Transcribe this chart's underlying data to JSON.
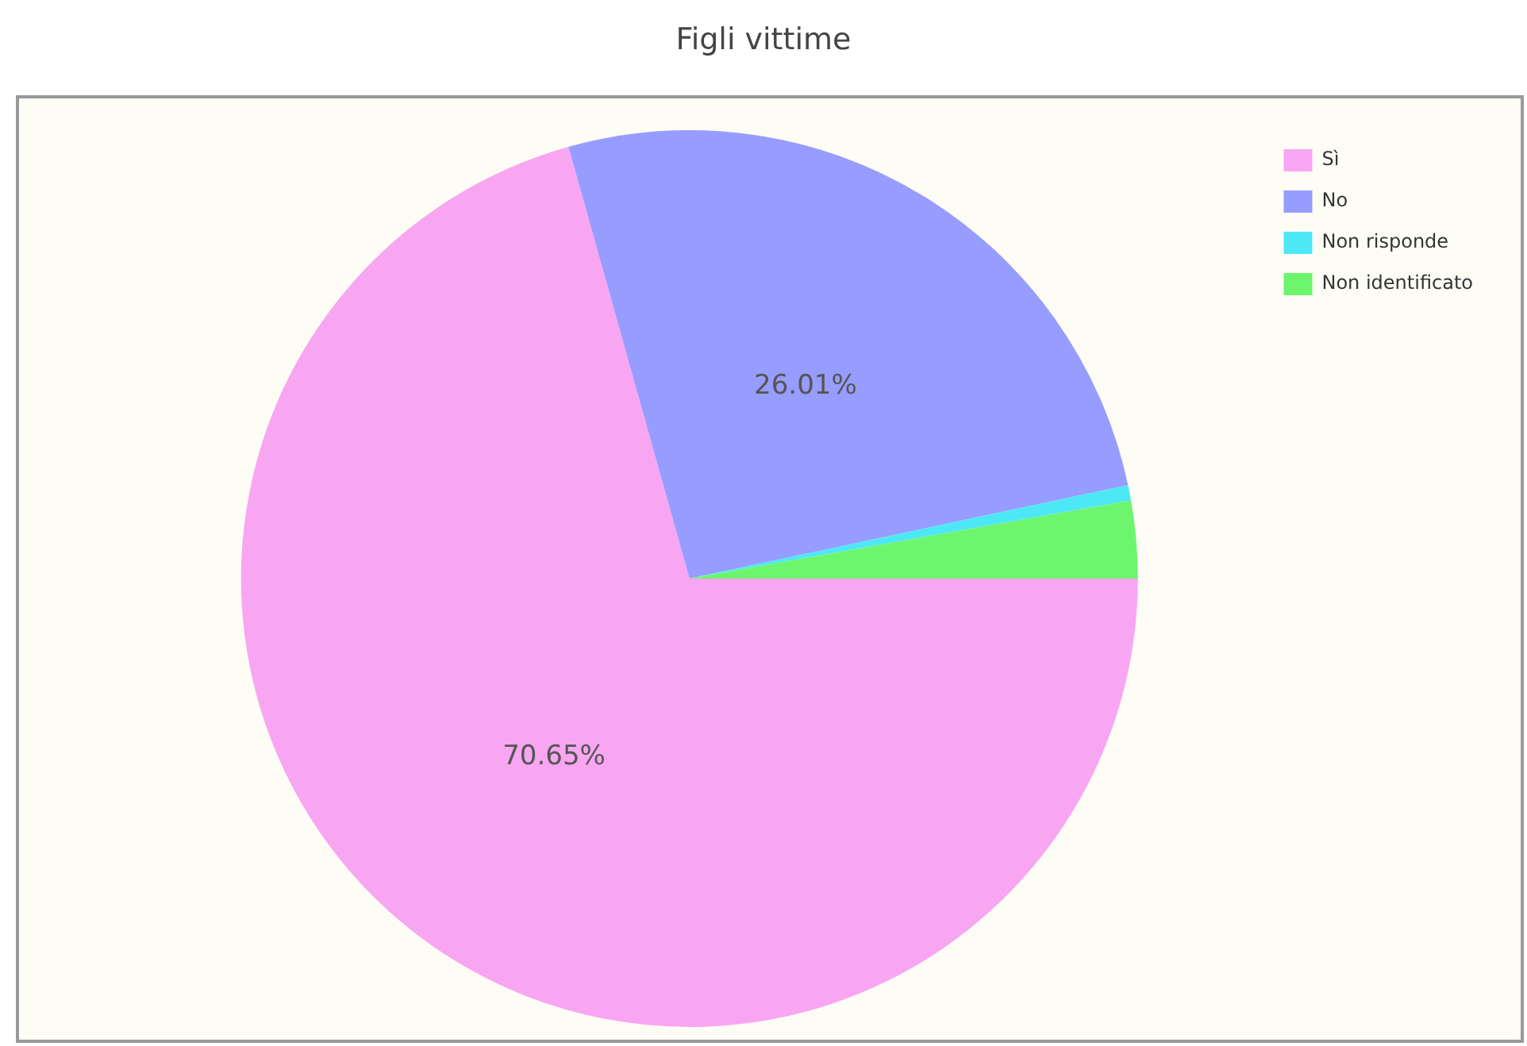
{
  "chart_data": {
    "type": "pie",
    "title": "Figli vittime",
    "categories": [
      "Sì",
      "No",
      "Non risponde",
      "Non identificato"
    ],
    "values": [
      70.65,
      26.01,
      0.55,
      2.79
    ],
    "colors": [
      "#f9a6f2",
      "#979cff",
      "#4de8f5",
      "#6df56d"
    ],
    "value_labels": [
      "70.65%",
      "26.01%",
      null,
      null
    ],
    "legend": "top right"
  }
}
